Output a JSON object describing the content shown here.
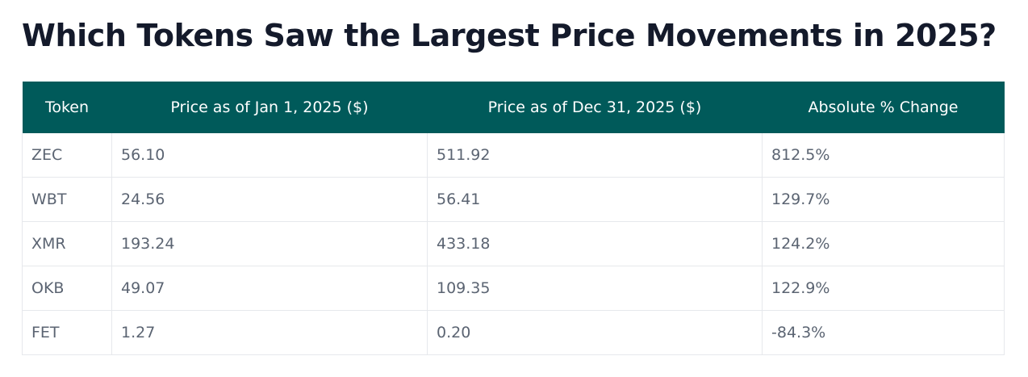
{
  "title": "Which Tokens Saw the Largest Price Movements in 2025?",
  "table": {
    "headers": [
      "Token",
      "Price as of Jan 1, 2025 ($)",
      "Price as of Dec 31, 2025 ($)",
      "Absolute % Change"
    ],
    "rows": [
      [
        "ZEC",
        "56.10",
        "511.92",
        "812.5%"
      ],
      [
        "WBT",
        "24.56",
        "56.41",
        "129.7%"
      ],
      [
        "XMR",
        "193.24",
        "433.18",
        "124.2%"
      ],
      [
        "OKB",
        "49.07",
        "109.35",
        "122.9%"
      ],
      [
        "FET",
        "1.27",
        "0.20",
        "-84.3%"
      ]
    ]
  },
  "colors": {
    "header_bg": "#005a5a",
    "header_text": "#ffffff",
    "title_text": "#141a2b",
    "cell_text": "#5b6472",
    "border": "#e6e8ec"
  }
}
